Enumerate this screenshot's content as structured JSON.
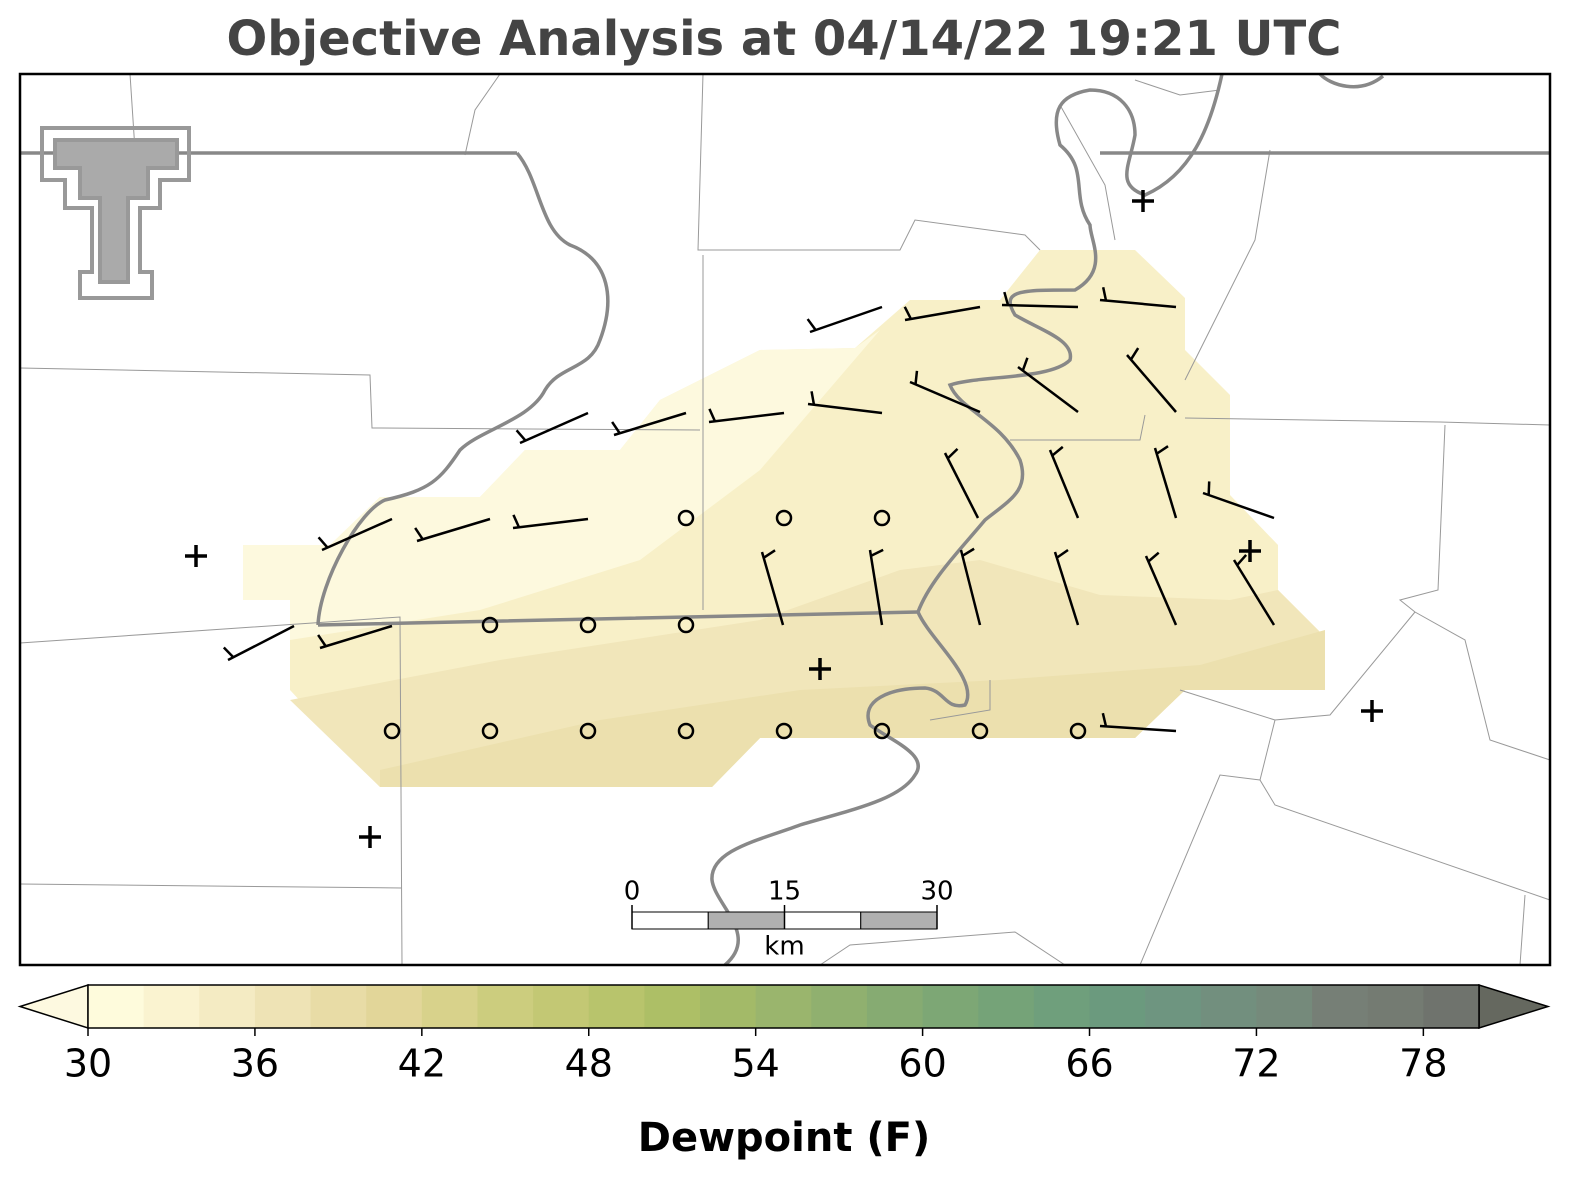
{
  "title": "Objective Analysis at 04/14/22 19:21 UTC",
  "scale_bar": {
    "ticks": [
      0,
      15,
      30
    ],
    "unit": "km"
  },
  "colorbar": {
    "label": "Dewpoint (F)",
    "range": [
      30,
      80
    ],
    "step": 2,
    "ticks": [
      30,
      36,
      42,
      48,
      54,
      60,
      66,
      72,
      78
    ],
    "colors": [
      "#fefbdc",
      "#faf3d0",
      "#f4ebc3",
      "#eee3b5",
      "#e8dca6",
      "#e2d699",
      "#d8d28b",
      "#cccd7e",
      "#c3c874",
      "#b8c46c",
      "#adbf66",
      "#a3ba68",
      "#9ab56d",
      "#90b06f",
      "#86ab72",
      "#7da775",
      "#75a378",
      "#6f9f7c",
      "#6b9a7e",
      "#6e9580",
      "#728f7e",
      "#758a7b",
      "#767f76",
      "#747b72",
      "#6f736d"
    ],
    "under_color": "#fdf9e0",
    "over_color": "#65685f"
  }
}
